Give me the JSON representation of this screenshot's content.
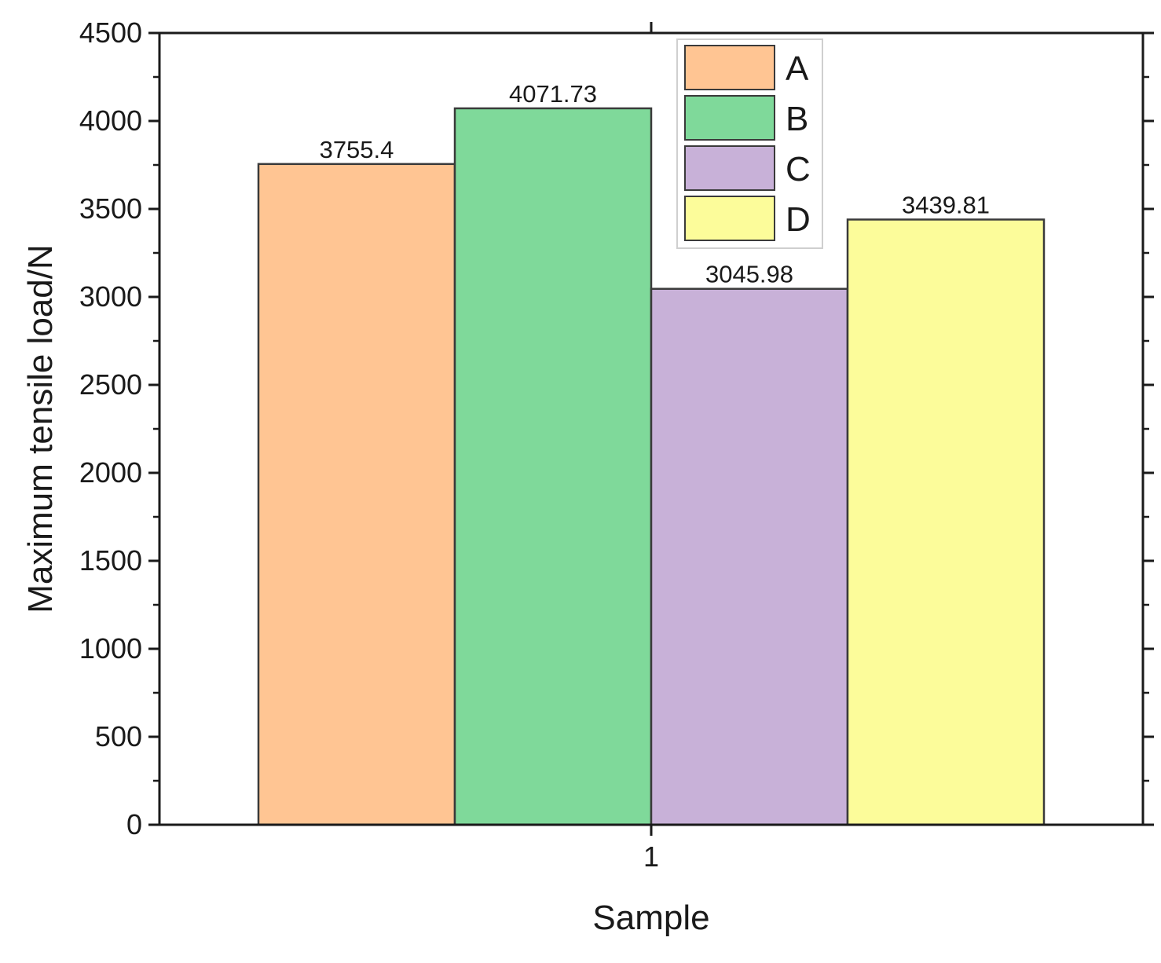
{
  "chart_data": {
    "type": "bar",
    "title": "",
    "xlabel": "Sample",
    "ylabel": "Maximum tensile load/N",
    "categories": [
      "1"
    ],
    "ylim": [
      0,
      4500
    ],
    "yticks": [
      "0",
      "500",
      "1000",
      "1500",
      "2000",
      "2500",
      "3000",
      "3500",
      "4000",
      "4500"
    ],
    "grid": false,
    "legend": "top-center",
    "series": [
      {
        "name": "A",
        "values": [
          3755.4
        ],
        "label": "3755.4",
        "color": "#FFC593"
      },
      {
        "name": "B",
        "values": [
          4071.73
        ],
        "label": "4071.73",
        "color": "#7FD99A"
      },
      {
        "name": "C",
        "values": [
          3045.98
        ],
        "label": "3045.98",
        "color": "#C8B1D8"
      },
      {
        "name": "D",
        "values": [
          3439.81
        ],
        "label": "3439.81",
        "color": "#FCFC9A"
      }
    ]
  }
}
